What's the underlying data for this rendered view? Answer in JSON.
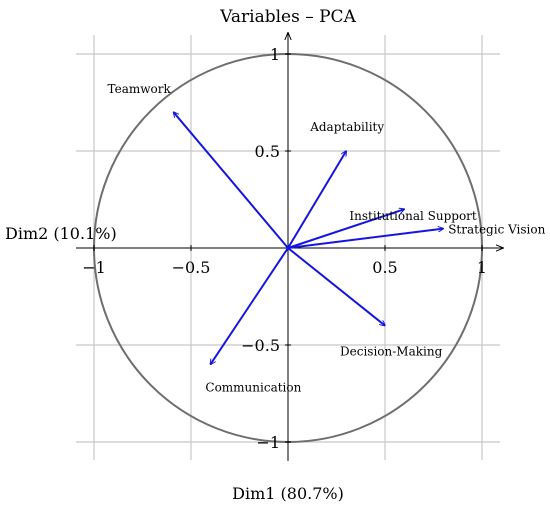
{
  "chart_data": {
    "type": "scatter",
    "title": "Variables – PCA",
    "xlabel": "Dim1 (80.7%)",
    "ylabel": "Dim2 (10.1%)",
    "xlim": [
      -1,
      1
    ],
    "ylim": [
      -1,
      1
    ],
    "grid": true,
    "correlation_circle": true,
    "x_ticks": [
      {
        "value": -1,
        "label": "−1"
      },
      {
        "value": -0.5,
        "label": "−0.5"
      },
      {
        "value": 0.5,
        "label": "0.5"
      },
      {
        "value": 1,
        "label": "1"
      }
    ],
    "y_ticks": [
      {
        "value": 1,
        "label": "1"
      },
      {
        "value": 0.5,
        "label": "0.5"
      },
      {
        "value": -0.5,
        "label": "−0.5"
      },
      {
        "value": -1,
        "label": "−1"
      }
    ],
    "variables": [
      {
        "name": "Teamwork",
        "x": -0.59,
        "y": 0.7
      },
      {
        "name": "Adaptability",
        "x": 0.3,
        "y": 0.5
      },
      {
        "name": "Institutional Support",
        "x": 0.6,
        "y": 0.2
      },
      {
        "name": "Strategic Vision",
        "x": 0.8,
        "y": 0.1
      },
      {
        "name": "Decision-Making",
        "x": 0.5,
        "y": -0.4
      },
      {
        "name": "Communication",
        "x": -0.4,
        "y": -0.6
      }
    ],
    "arrow_color": "#1515e0",
    "circle_color": "#6e6e6e",
    "grid_color": "#c8c8c8"
  }
}
